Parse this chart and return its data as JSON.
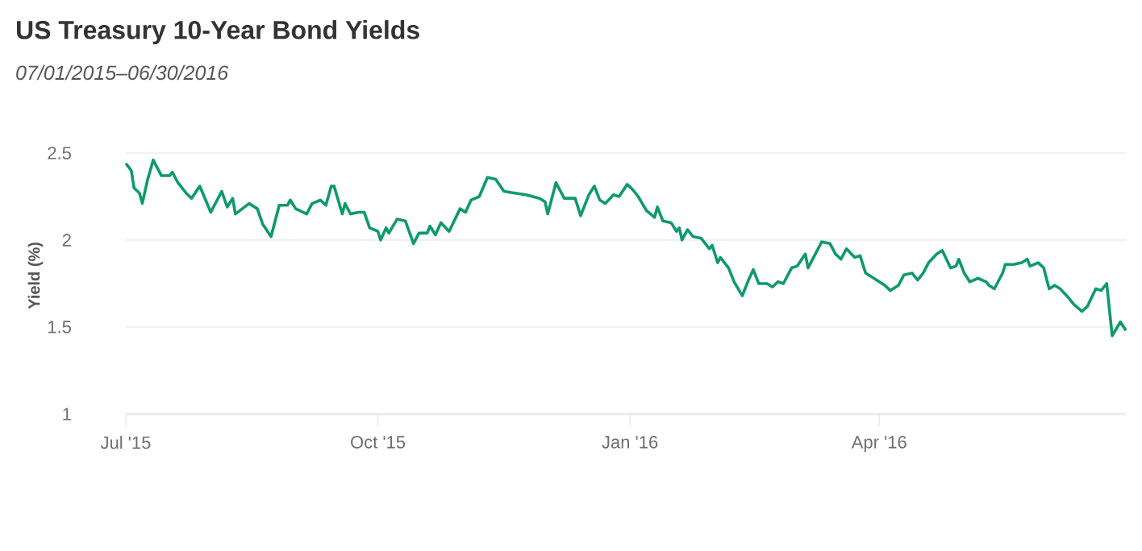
{
  "chart_data": {
    "type": "line",
    "title": "US Treasury 10-Year Bond Yields",
    "subtitle": "07/01/2015–06/30/2016",
    "ylabel": "Yield (%)",
    "color": "#0e9a6b",
    "grid": "y",
    "xlim": [
      "2015-07-01",
      "2016-06-30"
    ],
    "xticks": [
      {
        "value": "2015-07-01",
        "label": "Jul '15"
      },
      {
        "value": "2015-10-01",
        "label": "Oct '15"
      },
      {
        "value": "2016-01-01",
        "label": "Jan '16"
      },
      {
        "value": "2016-04-01",
        "label": "Apr '16"
      }
    ],
    "ylim": [
      1,
      2.5
    ],
    "yticks": [
      1,
      1.5,
      2,
      2.5
    ],
    "x": [
      "2015-07-01",
      "2015-07-03",
      "2015-07-04",
      "2015-07-06",
      "2015-07-07",
      "2015-07-09",
      "2015-07-11",
      "2015-07-14",
      "2015-07-17",
      "2015-07-18",
      "2015-07-20",
      "2015-07-23",
      "2015-07-25",
      "2015-07-28",
      "2015-08-01",
      "2015-08-05",
      "2015-08-07",
      "2015-08-09",
      "2015-08-10",
      "2015-08-15",
      "2015-08-18",
      "2015-08-20",
      "2015-08-23",
      "2015-08-26",
      "2015-08-29",
      "2015-08-30",
      "2015-09-01",
      "2015-09-05",
      "2015-09-07",
      "2015-09-10",
      "2015-09-12",
      "2015-09-14",
      "2015-09-15",
      "2015-09-18",
      "2015-09-19",
      "2015-09-21",
      "2015-09-24",
      "2015-09-26",
      "2015-09-28",
      "2015-10-01",
      "2015-10-02",
      "2015-10-04",
      "2015-10-05",
      "2015-10-08",
      "2015-10-11",
      "2015-10-14",
      "2015-10-16",
      "2015-10-19",
      "2015-10-20",
      "2015-10-22",
      "2015-10-24",
      "2015-10-27",
      "2015-10-31",
      "2015-11-02",
      "2015-11-04",
      "2015-11-07",
      "2015-11-10",
      "2015-11-13",
      "2015-11-16",
      "2015-11-20",
      "2015-11-24",
      "2015-11-29",
      "2015-12-01",
      "2015-12-02",
      "2015-12-05",
      "2015-12-08",
      "2015-12-12",
      "2015-12-14",
      "2015-12-17",
      "2015-12-19",
      "2015-12-21",
      "2015-12-23",
      "2015-12-26",
      "2015-12-28",
      "2015-12-31",
      "2016-01-02",
      "2016-01-04",
      "2016-01-07",
      "2016-01-10",
      "2016-01-11",
      "2016-01-13",
      "2016-01-16",
      "2016-01-18",
      "2016-01-19",
      "2016-01-20",
      "2016-01-22",
      "2016-01-24",
      "2016-01-27",
      "2016-01-30",
      "2016-01-31",
      "2016-02-02",
      "2016-02-03",
      "2016-02-06",
      "2016-02-08",
      "2016-02-11",
      "2016-02-13",
      "2016-02-15",
      "2016-02-17",
      "2016-02-20",
      "2016-02-22",
      "2016-02-24",
      "2016-02-26",
      "2016-02-29",
      "2016-03-02",
      "2016-03-05",
      "2016-03-06",
      "2016-03-11",
      "2016-03-14",
      "2016-03-16",
      "2016-03-18",
      "2016-03-20",
      "2016-03-23",
      "2016-03-25",
      "2016-03-27",
      "2016-03-29",
      "2016-04-01",
      "2016-04-03",
      "2016-04-05",
      "2016-04-08",
      "2016-04-10",
      "2016-04-13",
      "2016-04-15",
      "2016-04-17",
      "2016-04-19",
      "2016-04-22",
      "2016-04-24",
      "2016-04-27",
      "2016-04-29",
      "2016-04-30",
      "2016-05-02",
      "2016-05-04",
      "2016-05-07",
      "2016-05-10",
      "2016-05-11",
      "2016-05-13",
      "2016-05-16",
      "2016-05-17",
      "2016-05-20",
      "2016-05-23",
      "2016-05-25",
      "2016-05-26",
      "2016-05-29",
      "2016-05-31",
      "2016-06-02",
      "2016-06-04",
      "2016-06-06",
      "2016-06-09",
      "2016-06-11",
      "2016-06-14",
      "2016-06-16",
      "2016-06-19",
      "2016-06-21",
      "2016-06-23",
      "2016-06-25",
      "2016-06-28",
      "2016-06-30"
    ],
    "values": [
      2.44,
      2.4,
      2.3,
      2.27,
      2.21,
      2.35,
      2.46,
      2.37,
      2.37,
      2.39,
      2.33,
      2.27,
      2.24,
      2.31,
      2.16,
      2.28,
      2.19,
      2.24,
      2.15,
      2.21,
      2.18,
      2.09,
      2.02,
      2.2,
      2.2,
      2.23,
      2.18,
      2.15,
      2.21,
      2.23,
      2.2,
      2.31,
      2.31,
      2.15,
      2.21,
      2.15,
      2.16,
      2.16,
      2.07,
      2.05,
      2.0,
      2.07,
      2.04,
      2.12,
      2.11,
      1.98,
      2.04,
      2.04,
      2.08,
      2.03,
      2.1,
      2.05,
      2.18,
      2.16,
      2.23,
      2.25,
      2.36,
      2.35,
      2.28,
      2.27,
      2.26,
      2.24,
      2.22,
      2.15,
      2.33,
      2.24,
      2.24,
      2.14,
      2.26,
      2.31,
      2.23,
      2.21,
      2.26,
      2.25,
      2.32,
      2.29,
      2.25,
      2.17,
      2.13,
      2.19,
      2.11,
      2.1,
      2.05,
      2.07,
      2.0,
      2.06,
      2.02,
      2.01,
      1.95,
      1.97,
      1.87,
      1.9,
      1.84,
      1.76,
      1.68,
      1.76,
      1.83,
      1.75,
      1.75,
      1.73,
      1.76,
      1.75,
      1.84,
      1.85,
      1.92,
      1.84,
      1.99,
      1.98,
      1.92,
      1.89,
      1.95,
      1.9,
      1.91,
      1.81,
      1.79,
      1.76,
      1.74,
      1.71,
      1.74,
      1.8,
      1.81,
      1.77,
      1.81,
      1.87,
      1.92,
      1.94,
      1.84,
      1.85,
      1.89,
      1.81,
      1.76,
      1.78,
      1.76,
      1.74,
      1.72,
      1.81,
      1.86,
      1.86,
      1.87,
      1.89,
      1.85,
      1.87,
      1.84,
      1.72,
      1.74,
      1.72,
      1.67,
      1.63,
      1.59,
      1.62,
      1.72,
      1.71,
      1.75,
      1.45,
      1.53,
      1.48
    ]
  }
}
